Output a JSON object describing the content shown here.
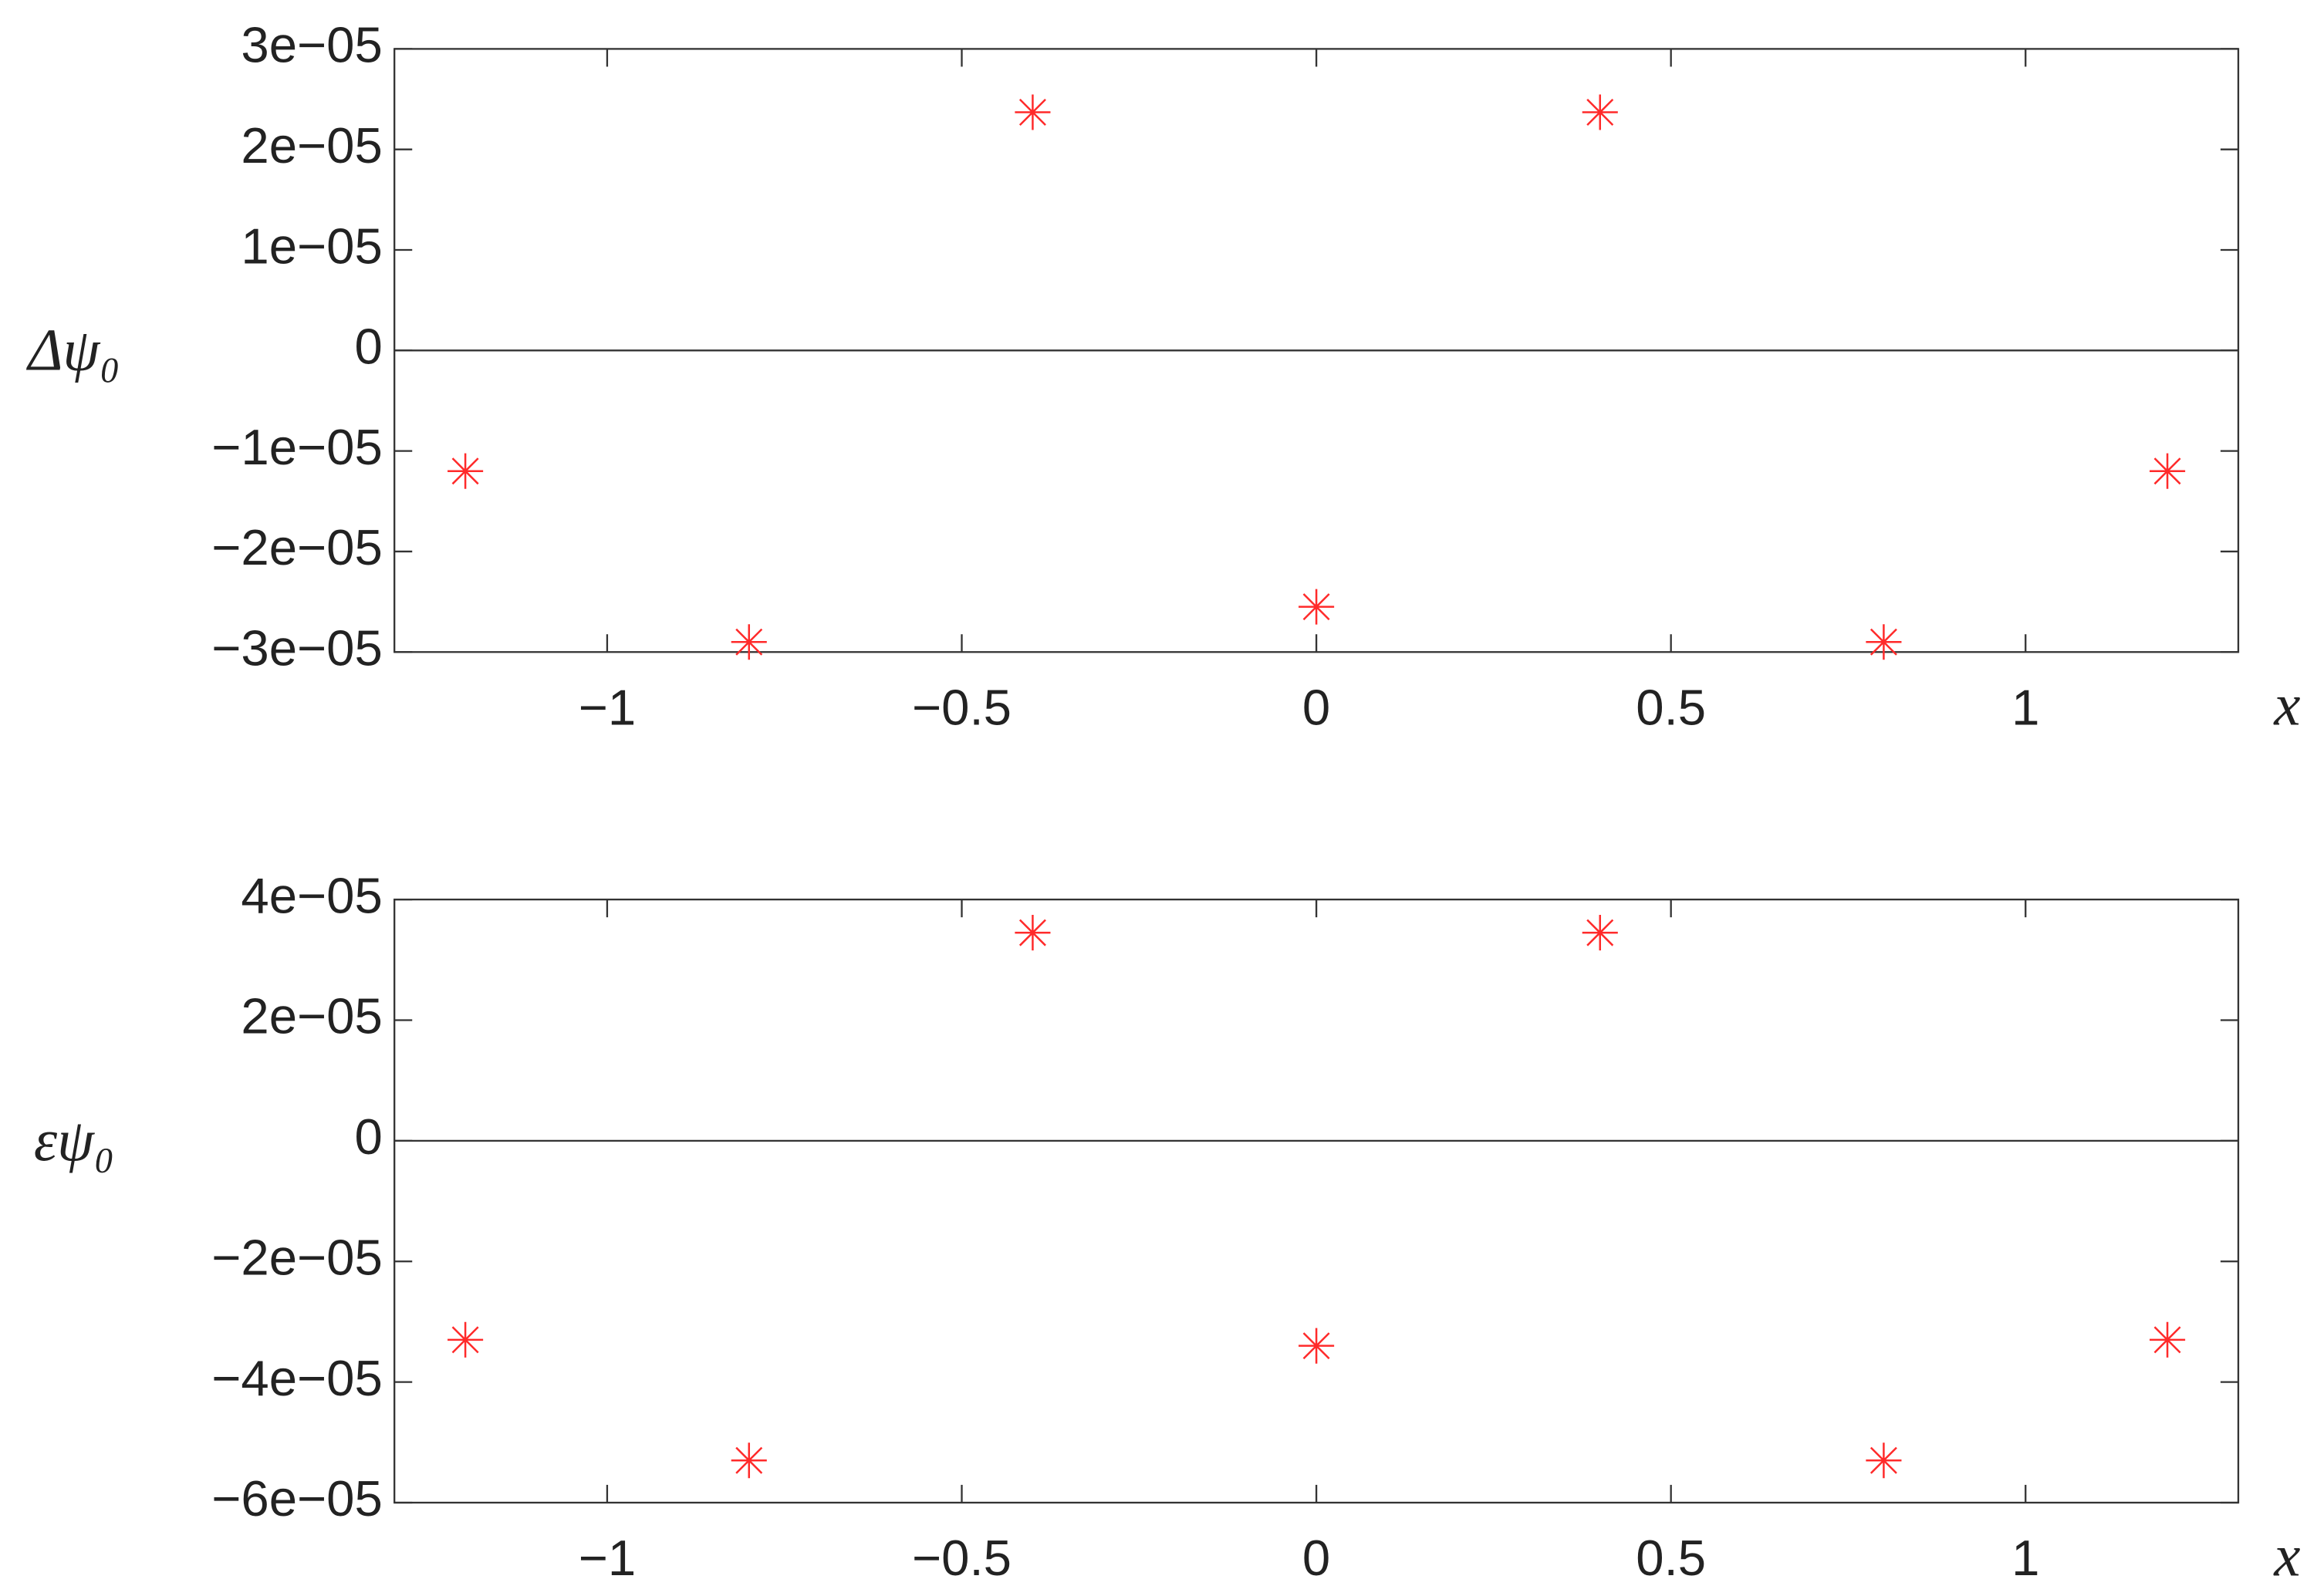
{
  "chart_data": [
    {
      "type": "scatter",
      "ylabel": "Δψ₀",
      "xlabel": "x",
      "color": "#ff2a2a",
      "zero_axis": true,
      "x": [
        -1.2,
        -0.8,
        -0.4,
        0,
        0.4,
        0.8,
        1.2
      ],
      "values": [
        -1.2e-05,
        -2.9e-05,
        2.37e-05,
        -2.55e-05,
        2.37e-05,
        -2.9e-05,
        -1.2e-05
      ],
      "xlim": [
        -1.3,
        1.3
      ],
      "xticks": [
        {
          "value": -1,
          "label": "−1"
        },
        {
          "value": -0.5,
          "label": "−0.5"
        },
        0,
        0.5,
        1
      ],
      "ylim": [
        -3e-05,
        3e-05
      ],
      "yticks": [
        {
          "value": -3e-05,
          "label": "−3e−05"
        },
        {
          "value": -2e-05,
          "label": "−2e−05"
        },
        {
          "value": -1e-05,
          "label": "−1e−05"
        },
        0,
        {
          "value": 1e-05,
          "label": "1e−05"
        },
        {
          "value": 2e-05,
          "label": "2e−05"
        },
        {
          "value": 3e-05,
          "label": "3e−05"
        }
      ]
    },
    {
      "type": "scatter",
      "ylabel": "εψ₀",
      "xlabel": "x",
      "color": "#ff2a2a",
      "zero_axis": true,
      "x": [
        -1.2,
        -0.8,
        -0.4,
        0,
        0.4,
        0.8,
        1.2
      ],
      "values": [
        -3.3e-05,
        -5.3e-05,
        3.45e-05,
        -3.4e-05,
        3.45e-05,
        -5.3e-05,
        -3.3e-05
      ],
      "xlim": [
        -1.3,
        1.3
      ],
      "xticks": [
        {
          "value": -1,
          "label": "−1"
        },
        {
          "value": -0.5,
          "label": "−0.5"
        },
        0,
        0.5,
        1
      ],
      "ylim": [
        -6e-05,
        4e-05
      ],
      "yticks": [
        {
          "value": -6e-05,
          "label": "−6e−05"
        },
        {
          "value": -4e-05,
          "label": "−4e−05"
        },
        {
          "value": -2e-05,
          "label": "−2e−05"
        },
        0,
        {
          "value": 2e-05,
          "label": "2e−05"
        },
        {
          "value": 4e-05,
          "label": "4e−05"
        }
      ]
    }
  ]
}
